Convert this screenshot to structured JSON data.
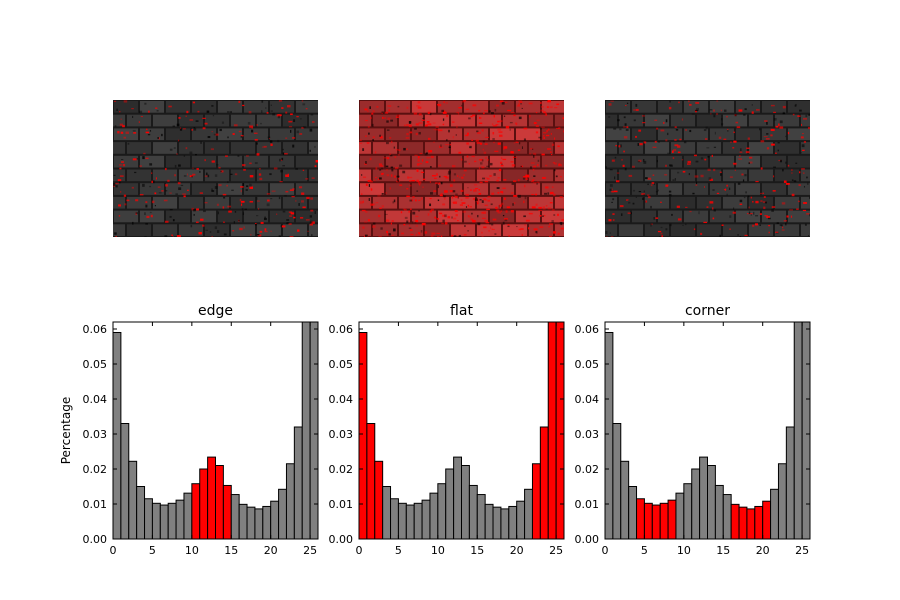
{
  "chart_data": [
    {
      "type": "bar",
      "title": "edge",
      "ylabel": "Percentage",
      "xlim": [
        0,
        26
      ],
      "ylim": [
        0,
        0.062
      ],
      "xticks": [
        "0",
        "5",
        "10",
        "15",
        "20",
        "25"
      ],
      "yticks": [
        "0.00",
        "0.01",
        "0.02",
        "0.03",
        "0.04",
        "0.05",
        "0.06"
      ],
      "bins": [
        0,
        1,
        2,
        3,
        4,
        5,
        6,
        7,
        8,
        9,
        10,
        11,
        12,
        13,
        14,
        15,
        16,
        17,
        18,
        19,
        20,
        21,
        22,
        23,
        24,
        25
      ],
      "values": [
        0.059,
        0.033,
        0.0222,
        0.015,
        0.0115,
        0.0102,
        0.0097,
        0.0102,
        0.0111,
        0.0131,
        0.0158,
        0.02,
        0.0234,
        0.021,
        0.0153,
        0.0127,
        0.0099,
        0.0091,
        0.0086,
        0.0093,
        0.0108,
        0.0142,
        0.0215,
        0.032,
        0.062,
        0.062
      ],
      "highlighted_bins": [
        10,
        11,
        12,
        13,
        14
      ],
      "colors": {
        "highlight": "#ff0000",
        "default": "#808080"
      }
    },
    {
      "type": "bar",
      "title": "flat",
      "xlim": [
        0,
        26
      ],
      "ylim": [
        0,
        0.062
      ],
      "xticks": [
        "0",
        "5",
        "10",
        "15",
        "20",
        "25"
      ],
      "yticks": [
        "0.00",
        "0.01",
        "0.02",
        "0.03",
        "0.04",
        "0.05",
        "0.06"
      ],
      "bins": [
        0,
        1,
        2,
        3,
        4,
        5,
        6,
        7,
        8,
        9,
        10,
        11,
        12,
        13,
        14,
        15,
        16,
        17,
        18,
        19,
        20,
        21,
        22,
        23,
        24,
        25
      ],
      "values": [
        0.059,
        0.033,
        0.0222,
        0.015,
        0.0115,
        0.0102,
        0.0097,
        0.0102,
        0.0111,
        0.0131,
        0.0158,
        0.02,
        0.0234,
        0.021,
        0.0153,
        0.0127,
        0.0099,
        0.0091,
        0.0086,
        0.0093,
        0.0108,
        0.0142,
        0.0215,
        0.032,
        0.062,
        0.062
      ],
      "highlighted_bins": [
        0,
        1,
        2,
        22,
        23,
        24,
        25
      ],
      "colors": {
        "highlight": "#ff0000",
        "default": "#808080"
      }
    },
    {
      "type": "bar",
      "title": "corner",
      "xlim": [
        0,
        26
      ],
      "ylim": [
        0,
        0.062
      ],
      "xticks": [
        "0",
        "5",
        "10",
        "15",
        "20",
        "25"
      ],
      "yticks": [
        "0.00",
        "0.01",
        "0.02",
        "0.03",
        "0.04",
        "0.05",
        "0.06"
      ],
      "bins": [
        0,
        1,
        2,
        3,
        4,
        5,
        6,
        7,
        8,
        9,
        10,
        11,
        12,
        13,
        14,
        15,
        16,
        17,
        18,
        19,
        20,
        21,
        22,
        23,
        24,
        25
      ],
      "values": [
        0.059,
        0.033,
        0.0222,
        0.015,
        0.0115,
        0.0102,
        0.0097,
        0.0102,
        0.0111,
        0.0131,
        0.0158,
        0.02,
        0.0234,
        0.021,
        0.0153,
        0.0127,
        0.0099,
        0.0091,
        0.0086,
        0.0093,
        0.0108,
        0.0142,
        0.0215,
        0.032,
        0.062,
        0.062
      ],
      "highlighted_bins": [
        4,
        5,
        6,
        7,
        8,
        16,
        17,
        18,
        19,
        20
      ],
      "colors": {
        "highlight": "#ff0000",
        "default": "#808080"
      }
    }
  ],
  "images": [
    {
      "tint": "dark",
      "colors": {
        "base": "#3a3a3a",
        "mortar": "#1a1a1a",
        "highlight": "#ff0000"
      }
    },
    {
      "tint": "red",
      "colors": {
        "base": "#b23333",
        "mortar": "#5a1010",
        "highlight": "#ff0000"
      }
    },
    {
      "tint": "dark",
      "colors": {
        "base": "#3a3a3a",
        "mortar": "#1a1a1a",
        "highlight": "#ff0000"
      }
    }
  ]
}
